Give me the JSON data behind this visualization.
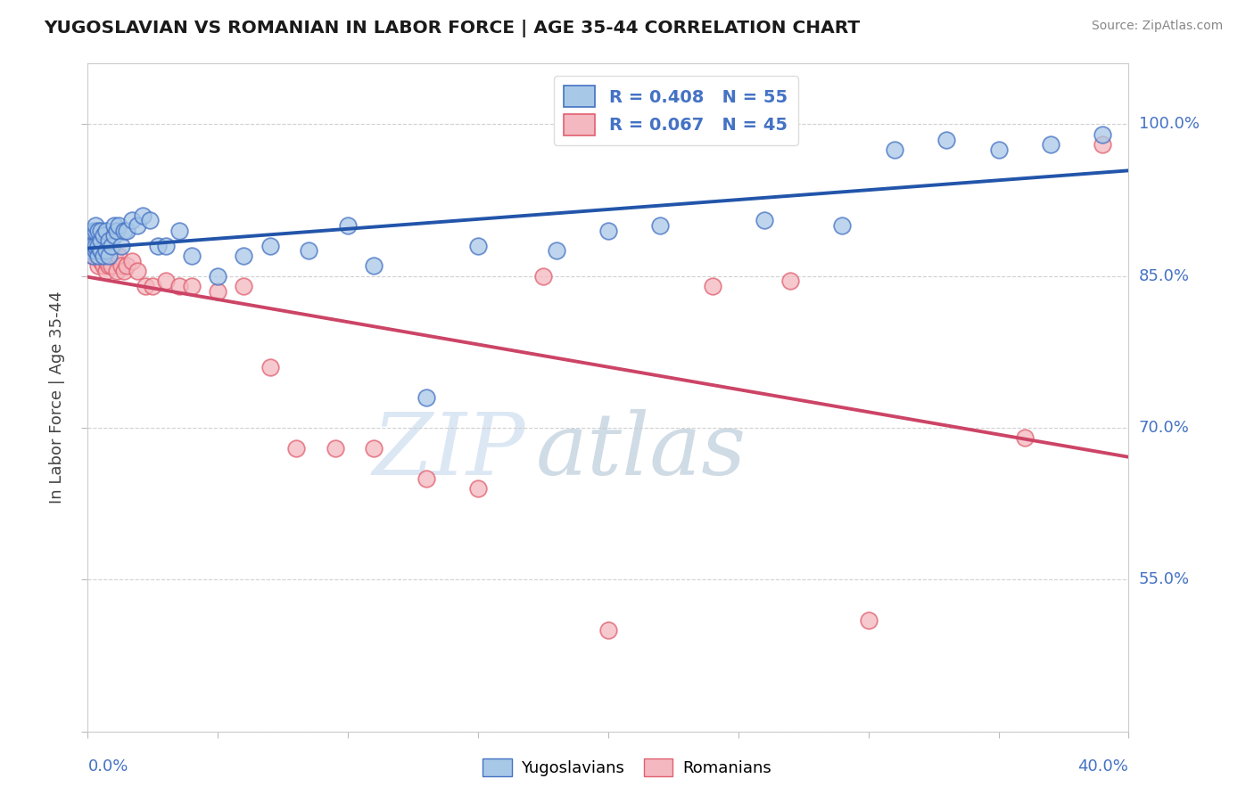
{
  "title": "YUGOSLAVIAN VS ROMANIAN IN LABOR FORCE | AGE 35-44 CORRELATION CHART",
  "source": "Source: ZipAtlas.com",
  "ylabel": "In Labor Force | Age 35-44",
  "yaxis_labels": [
    "100.0%",
    "85.0%",
    "70.0%",
    "55.0%"
  ],
  "yaxis_vals": [
    1.0,
    0.85,
    0.7,
    0.55
  ],
  "xaxis_label_left": "0.0%",
  "xaxis_label_right": "40.0%",
  "legend_label_blue": "Yugoslavians",
  "legend_label_pink": "Romanians",
  "legend_blue_text": "R = 0.408   N = 55",
  "legend_pink_text": "R = 0.067   N = 45",
  "blue_color": "#a8c8e8",
  "blue_edge": "#4472c4",
  "pink_color": "#f4b8c0",
  "pink_edge": "#e06070",
  "trend_blue_color": "#2255aa",
  "trend_pink_color": "#cc4466",
  "xmin": 0.0,
  "xmax": 0.4,
  "ymin": 0.4,
  "ymax": 1.06,
  "blue_x": [
    0.001,
    0.001,
    0.002,
    0.002,
    0.002,
    0.003,
    0.003,
    0.003,
    0.003,
    0.004,
    0.004,
    0.004,
    0.005,
    0.005,
    0.005,
    0.006,
    0.006,
    0.007,
    0.007,
    0.008,
    0.008,
    0.009,
    0.01,
    0.01,
    0.011,
    0.012,
    0.013,
    0.014,
    0.015,
    0.017,
    0.019,
    0.021,
    0.024,
    0.027,
    0.03,
    0.035,
    0.04,
    0.05,
    0.06,
    0.07,
    0.085,
    0.1,
    0.11,
    0.13,
    0.15,
    0.18,
    0.2,
    0.22,
    0.26,
    0.29,
    0.31,
    0.33,
    0.35,
    0.37,
    0.39
  ],
  "blue_y": [
    0.875,
    0.88,
    0.87,
    0.88,
    0.895,
    0.875,
    0.88,
    0.895,
    0.9,
    0.87,
    0.88,
    0.895,
    0.875,
    0.885,
    0.895,
    0.87,
    0.89,
    0.875,
    0.895,
    0.87,
    0.885,
    0.88,
    0.89,
    0.9,
    0.895,
    0.9,
    0.88,
    0.895,
    0.895,
    0.905,
    0.9,
    0.91,
    0.905,
    0.88,
    0.88,
    0.895,
    0.87,
    0.85,
    0.87,
    0.88,
    0.875,
    0.9,
    0.86,
    0.73,
    0.88,
    0.875,
    0.895,
    0.9,
    0.905,
    0.9,
    0.975,
    0.985,
    0.975,
    0.98,
    0.99
  ],
  "pink_x": [
    0.001,
    0.001,
    0.002,
    0.002,
    0.003,
    0.003,
    0.003,
    0.004,
    0.004,
    0.005,
    0.005,
    0.006,
    0.006,
    0.007,
    0.007,
    0.008,
    0.009,
    0.01,
    0.011,
    0.012,
    0.013,
    0.014,
    0.015,
    0.017,
    0.019,
    0.022,
    0.025,
    0.03,
    0.035,
    0.04,
    0.05,
    0.06,
    0.07,
    0.08,
    0.095,
    0.11,
    0.13,
    0.15,
    0.175,
    0.2,
    0.24,
    0.27,
    0.3,
    0.36,
    0.39
  ],
  "pink_y": [
    0.875,
    0.88,
    0.87,
    0.885,
    0.87,
    0.878,
    0.88,
    0.86,
    0.875,
    0.865,
    0.88,
    0.86,
    0.875,
    0.855,
    0.865,
    0.86,
    0.86,
    0.87,
    0.855,
    0.87,
    0.86,
    0.855,
    0.86,
    0.865,
    0.855,
    0.84,
    0.84,
    0.845,
    0.84,
    0.84,
    0.835,
    0.84,
    0.76,
    0.68,
    0.68,
    0.68,
    0.65,
    0.64,
    0.85,
    0.5,
    0.84,
    0.845,
    0.51,
    0.69,
    0.98
  ],
  "watermark_zip": "ZIP",
  "watermark_atlas": "atlas"
}
